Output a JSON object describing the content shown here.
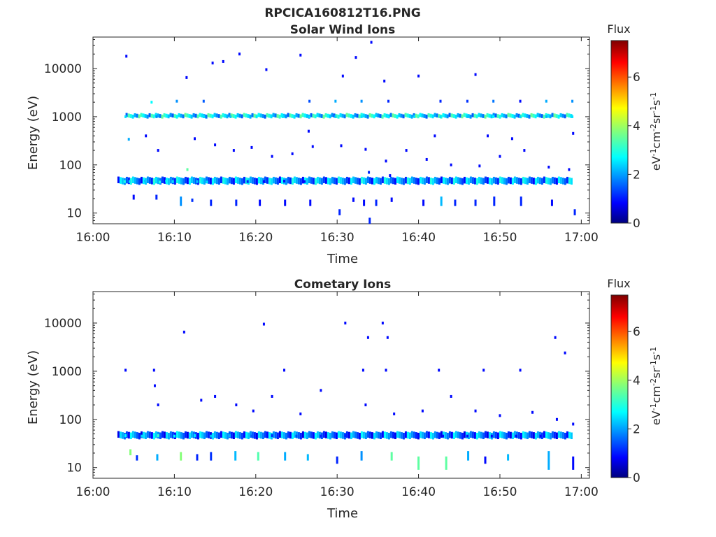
{
  "figure_title": "RPCICA160812T16.PNG",
  "colorbar": {
    "title": "Flux",
    "ticks": [
      0,
      2,
      4,
      6
    ],
    "range": [
      0,
      7.5
    ],
    "colormap": "jet"
  },
  "chart_data": [
    {
      "type": "heatmap",
      "title": "Solar Wind Ions",
      "xlabel": "Time",
      "ylabel": "Energy (eV)",
      "y_scale": "log",
      "xlim": [
        "16:00",
        "17:01"
      ],
      "ylim": [
        6,
        45000
      ],
      "x_ticks": [
        "16:00",
        "16:10",
        "16:20",
        "16:30",
        "16:40",
        "16:50",
        "17:00"
      ],
      "y_ticks": [
        {
          "value": 10,
          "label": "10"
        },
        {
          "value": 100,
          "label": "100"
        },
        {
          "value": 1000,
          "label": "1000"
        },
        {
          "value": 10000,
          "label": "10000"
        }
      ],
      "colorbar_label": "eV-1cm-2sr-1s-1",
      "bands": [
        {
          "name": "band ~45 eV",
          "t_start": "16:03",
          "t_end": "16:59",
          "e_low": 40,
          "e_high": 55,
          "flux": 2.0
        },
        {
          "name": "band ~1000 eV",
          "t_start": "16:04",
          "t_end": "16:59",
          "e_low": 950,
          "e_high": 1150,
          "flux": 2.6
        }
      ],
      "points": [
        {
          "t": "16:03.9",
          "e": 45,
          "f": 3.0
        },
        {
          "t": "16:04.5",
          "e": 45,
          "f": 2.6
        },
        {
          "t": "16:05.2",
          "e": 44,
          "f": 2.2
        },
        {
          "t": "16:06.4",
          "e": 46,
          "f": 2.4
        },
        {
          "t": "16:07.5",
          "e": 47,
          "f": 3.2
        },
        {
          "t": "16:08.2",
          "e": 44,
          "f": 3.0
        },
        {
          "t": "16:09.0",
          "e": 46,
          "f": 2.8
        },
        {
          "t": "16:09.8",
          "e": 45,
          "f": 2.6
        },
        {
          "t": "16:11.6",
          "e": 80,
          "f": 3.5
        },
        {
          "t": "16:12.8",
          "e": 45,
          "f": 2.4
        },
        {
          "t": "16:14.0",
          "e": 44,
          "f": 2.6
        },
        {
          "t": "16:15.5",
          "e": 46,
          "f": 1.6
        },
        {
          "t": "16:17.1",
          "e": 45,
          "f": 1.3
        },
        {
          "t": "16:19.0",
          "e": 45,
          "f": 1.2
        },
        {
          "t": "16:21.0",
          "e": 45,
          "f": 1.0
        },
        {
          "t": "16:23.5",
          "e": 46,
          "f": 1.0
        },
        {
          "t": "16:26.0",
          "e": 45,
          "f": 1.0
        },
        {
          "t": "16:33.9",
          "e": 70,
          "f": 1.2
        },
        {
          "t": "16:36.5",
          "e": 60,
          "f": 1.0
        },
        {
          "t": "16:04.0",
          "e": 1000,
          "f": 2.6
        },
        {
          "t": "16:07.2",
          "e": 2000,
          "f": 2.8
        },
        {
          "t": "16:07.8",
          "e": 1000,
          "f": 2.0
        },
        {
          "t": "16:10.3",
          "e": 1000,
          "f": 2.8
        },
        {
          "t": "16:13.6",
          "e": 1000,
          "f": 2.6
        },
        {
          "t": "16:16.9",
          "e": 1000,
          "f": 2.4
        },
        {
          "t": "16:20.1",
          "e": 1000,
          "f": 2.7
        },
        {
          "t": "16:23.3",
          "e": 1000,
          "f": 2.7
        },
        {
          "t": "16:26.6",
          "e": 1000,
          "f": 2.6
        },
        {
          "t": "16:29.8",
          "e": 1000,
          "f": 2.5
        },
        {
          "t": "16:33.0",
          "e": 1000,
          "f": 2.6
        },
        {
          "t": "16:36.3",
          "e": 1000,
          "f": 2.7
        },
        {
          "t": "16:39.5",
          "e": 1000,
          "f": 2.6
        },
        {
          "t": "16:42.7",
          "e": 1000,
          "f": 2.6
        },
        {
          "t": "16:46.0",
          "e": 1000,
          "f": 2.4
        },
        {
          "t": "16:49.2",
          "e": 1000,
          "f": 2.8
        },
        {
          "t": "16:52.5",
          "e": 1000,
          "f": 2.5
        },
        {
          "t": "16:55.7",
          "e": 1000,
          "f": 2.3
        },
        {
          "t": "16:58.9",
          "e": 1000,
          "f": 2.6
        },
        {
          "t": "16:10.3",
          "e": 2100,
          "f": 2.0
        },
        {
          "t": "16:13.6",
          "e": 2100,
          "f": 1.6
        },
        {
          "t": "16:26.6",
          "e": 2100,
          "f": 1.5
        },
        {
          "t": "16:29.8",
          "e": 2100,
          "f": 2.2
        },
        {
          "t": "16:33.0",
          "e": 2100,
          "f": 2.0
        },
        {
          "t": "16:36.3",
          "e": 2100,
          "f": 1.2
        },
        {
          "t": "16:42.7",
          "e": 2100,
          "f": 1.2
        },
        {
          "t": "16:46.0",
          "e": 2100,
          "f": 1.3
        },
        {
          "t": "16:49.2",
          "e": 2100,
          "f": 1.8
        },
        {
          "t": "16:52.5",
          "e": 2100,
          "f": 1.0
        },
        {
          "t": "16:55.7",
          "e": 2100,
          "f": 2.2
        },
        {
          "t": "16:58.9",
          "e": 2100,
          "f": 2.0
        },
        {
          "t": "16:04.1",
          "e": 18000,
          "f": 1.0
        },
        {
          "t": "16:11.5",
          "e": 6500,
          "f": 1.0
        },
        {
          "t": "16:14.7",
          "e": 13000,
          "f": 1.0
        },
        {
          "t": "16:16.0",
          "e": 14000,
          "f": 1.0
        },
        {
          "t": "16:18.0",
          "e": 20000,
          "f": 1.0
        },
        {
          "t": "16:21.3",
          "e": 9500,
          "f": 1.0
        },
        {
          "t": "16:25.5",
          "e": 19000,
          "f": 1.0
        },
        {
          "t": "16:30.7",
          "e": 7000,
          "f": 1.0
        },
        {
          "t": "16:32.3",
          "e": 17000,
          "f": 1.0
        },
        {
          "t": "16:34.2",
          "e": 35000,
          "f": 1.0
        },
        {
          "t": "16:35.8",
          "e": 5500,
          "f": 1.0
        },
        {
          "t": "16:40.0",
          "e": 7000,
          "f": 1.0
        },
        {
          "t": "16:47.0",
          "e": 7500,
          "f": 1.0
        },
        {
          "t": "16:08.0",
          "e": 200,
          "f": 1.0
        },
        {
          "t": "16:12.5",
          "e": 350,
          "f": 1.0
        },
        {
          "t": "16:15.0",
          "e": 260,
          "f": 1.0
        },
        {
          "t": "16:17.3",
          "e": 200,
          "f": 1.0
        },
        {
          "t": "16:19.5",
          "e": 230,
          "f": 1.0
        },
        {
          "t": "16:22.0",
          "e": 150,
          "f": 1.0
        },
        {
          "t": "16:24.5",
          "e": 170,
          "f": 1.0
        },
        {
          "t": "16:27.0",
          "e": 240,
          "f": 1.0
        },
        {
          "t": "16:30.5",
          "e": 250,
          "f": 1.0
        },
        {
          "t": "16:33.5",
          "e": 210,
          "f": 1.0
        },
        {
          "t": "16:36.0",
          "e": 120,
          "f": 1.0
        },
        {
          "t": "16:38.5",
          "e": 200,
          "f": 1.0
        },
        {
          "t": "16:41.0",
          "e": 130,
          "f": 1.0
        },
        {
          "t": "16:44.0",
          "e": 100,
          "f": 1.0
        },
        {
          "t": "16:47.5",
          "e": 95,
          "f": 1.0
        },
        {
          "t": "16:50.0",
          "e": 150,
          "f": 1.0
        },
        {
          "t": "16:53.0",
          "e": 200,
          "f": 1.0
        },
        {
          "t": "16:56.0",
          "e": 90,
          "f": 1.0
        },
        {
          "t": "16:58.5",
          "e": 80,
          "f": 1.0
        },
        {
          "t": "16:04.4",
          "e": 340,
          "f": 2.2
        },
        {
          "t": "16:06.5",
          "e": 400,
          "f": 1.0
        },
        {
          "t": "16:26.5",
          "e": 500,
          "f": 1.0
        },
        {
          "t": "16:42.0",
          "e": 400,
          "f": 1.0
        },
        {
          "t": "16:48.5",
          "e": 400,
          "f": 1.0
        },
        {
          "t": "16:51.5",
          "e": 350,
          "f": 1.0
        },
        {
          "t": "16:59.0",
          "e": 450,
          "f": 1.0
        }
      ],
      "low_energy_stripes": [
        {
          "t": "16:05.0",
          "e_low": 19,
          "e_high": 24,
          "f": 1.0
        },
        {
          "t": "16:07.8",
          "e_low": 19,
          "e_high": 24,
          "f": 1.2
        },
        {
          "t": "16:10.8",
          "e_low": 14,
          "e_high": 22,
          "f": 2.0
        },
        {
          "t": "16:12.2",
          "e_low": 17,
          "e_high": 20,
          "f": 1.3
        },
        {
          "t": "16:14.5",
          "e_low": 14,
          "e_high": 19,
          "f": 1.2
        },
        {
          "t": "16:17.6",
          "e_low": 14,
          "e_high": 19,
          "f": 1.2
        },
        {
          "t": "16:20.5",
          "e_low": 14,
          "e_high": 19,
          "f": 1.0
        },
        {
          "t": "16:23.6",
          "e_low": 14,
          "e_high": 19,
          "f": 1.0
        },
        {
          "t": "16:26.7",
          "e_low": 14,
          "e_high": 19,
          "f": 1.0
        },
        {
          "t": "16:30.3",
          "e_low": 9,
          "e_high": 12,
          "f": 1.2
        },
        {
          "t": "16:32.0",
          "e_low": 17,
          "e_high": 21,
          "f": 1.0
        },
        {
          "t": "16:33.3",
          "e_low": 14,
          "e_high": 19,
          "f": 1.0
        },
        {
          "t": "16:34.8",
          "e_low": 14,
          "e_high": 19,
          "f": 1.2
        },
        {
          "t": "16:36.7",
          "e_low": 17,
          "e_high": 21,
          "f": 1.0
        },
        {
          "t": "16:40.6",
          "e_low": 14,
          "e_high": 19,
          "f": 1.0
        },
        {
          "t": "16:42.8",
          "e_low": 14,
          "e_high": 22,
          "f": 2.3
        },
        {
          "t": "16:44.5",
          "e_low": 14,
          "e_high": 19,
          "f": 1.2
        },
        {
          "t": "16:47.0",
          "e_low": 14,
          "e_high": 19,
          "f": 1.2
        },
        {
          "t": "16:49.3",
          "e_low": 14,
          "e_high": 22,
          "f": 1.2
        },
        {
          "t": "16:52.6",
          "e_low": 14,
          "e_high": 22,
          "f": 1.2
        },
        {
          "t": "16:56.4",
          "e_low": 14,
          "e_high": 19,
          "f": 1.0
        },
        {
          "t": "16:59.2",
          "e_low": 9,
          "e_high": 12,
          "f": 1.2
        },
        {
          "t": "16:34.0",
          "e_low": 6,
          "e_high": 8,
          "f": 1.2
        }
      ]
    },
    {
      "type": "heatmap",
      "title": "Cometary Ions",
      "xlabel": "Time",
      "ylabel": "Energy (eV)",
      "y_scale": "log",
      "xlim": [
        "16:00",
        "17:01"
      ],
      "ylim": [
        6,
        45000
      ],
      "x_ticks": [
        "16:00",
        "16:10",
        "16:20",
        "16:30",
        "16:40",
        "16:50",
        "17:00"
      ],
      "y_ticks": [
        {
          "value": 10,
          "label": "10"
        },
        {
          "value": 100,
          "label": "100"
        },
        {
          "value": 1000,
          "label": "1000"
        },
        {
          "value": 10000,
          "label": "10000"
        }
      ],
      "colorbar_label": "eV-1cm-2sr-1s-1",
      "bands": [
        {
          "name": "band ~45 eV",
          "t_start": "16:03",
          "t_end": "16:59",
          "e_low": 40,
          "e_high": 55,
          "flux": 1.8
        }
      ],
      "points": [
        {
          "t": "16:04.0",
          "e": 46,
          "f": 2.8
        },
        {
          "t": "16:06.0",
          "e": 45,
          "f": 2.5
        },
        {
          "t": "16:08.0",
          "e": 46,
          "f": 3.2
        },
        {
          "t": "16:10.0",
          "e": 45,
          "f": 2.8
        },
        {
          "t": "16:12.5",
          "e": 46,
          "f": 2.6
        },
        {
          "t": "16:14.5",
          "e": 45,
          "f": 2.4
        },
        {
          "t": "16:16.8",
          "e": 46,
          "f": 2.2
        },
        {
          "t": "16:19.5",
          "e": 45,
          "f": 1.6
        },
        {
          "t": "16:22.0",
          "e": 46,
          "f": 1.3
        },
        {
          "t": "16:25.0",
          "e": 45,
          "f": 1.5
        },
        {
          "t": "16:28.0",
          "e": 45,
          "f": 1.2
        },
        {
          "t": "16:31.0",
          "e": 46,
          "f": 1.2
        },
        {
          "t": "16:34.0",
          "e": 46,
          "f": 1.4
        },
        {
          "t": "16:37.0",
          "e": 45,
          "f": 1.1
        },
        {
          "t": "16:40.0",
          "e": 45,
          "f": 1.0
        },
        {
          "t": "16:43.0",
          "e": 45,
          "f": 1.0
        },
        {
          "t": "16:46.0",
          "e": 45,
          "f": 1.0
        },
        {
          "t": "16:49.0",
          "e": 45,
          "f": 1.0
        },
        {
          "t": "16:52.0",
          "e": 45,
          "f": 1.0
        },
        {
          "t": "16:55.0",
          "e": 45,
          "f": 1.0
        },
        {
          "t": "16:04.0",
          "e": 1050,
          "f": 1.0
        },
        {
          "t": "16:07.5",
          "e": 1050,
          "f": 1.0
        },
        {
          "t": "16:11.2",
          "e": 6500,
          "f": 1.0
        },
        {
          "t": "16:21.0",
          "e": 9500,
          "f": 1.0
        },
        {
          "t": "16:31.0",
          "e": 10000,
          "f": 1.0
        },
        {
          "t": "16:33.8",
          "e": 5000,
          "f": 1.0
        },
        {
          "t": "16:35.6",
          "e": 10000,
          "f": 1.0
        },
        {
          "t": "16:36.2",
          "e": 5000,
          "f": 1.0
        },
        {
          "t": "16:56.8",
          "e": 5000,
          "f": 1.0
        },
        {
          "t": "16:58.0",
          "e": 2400,
          "f": 1.0
        },
        {
          "t": "16:23.5",
          "e": 1050,
          "f": 1.0
        },
        {
          "t": "16:33.2",
          "e": 1050,
          "f": 1.0
        },
        {
          "t": "16:36.0",
          "e": 1050,
          "f": 1.0
        },
        {
          "t": "16:42.5",
          "e": 1050,
          "f": 1.0
        },
        {
          "t": "16:48.0",
          "e": 1050,
          "f": 1.0
        },
        {
          "t": "16:52.5",
          "e": 1050,
          "f": 1.0
        },
        {
          "t": "16:07.6",
          "e": 500,
          "f": 1.0
        },
        {
          "t": "16:08.0",
          "e": 200,
          "f": 1.0
        },
        {
          "t": "16:13.3",
          "e": 250,
          "f": 1.0
        },
        {
          "t": "16:15.0",
          "e": 300,
          "f": 1.0
        },
        {
          "t": "16:17.6",
          "e": 200,
          "f": 1.0
        },
        {
          "t": "16:19.7",
          "e": 150,
          "f": 1.0
        },
        {
          "t": "16:22.0",
          "e": 300,
          "f": 1.0
        },
        {
          "t": "16:25.5",
          "e": 130,
          "f": 1.0
        },
        {
          "t": "16:28.0",
          "e": 400,
          "f": 1.0
        },
        {
          "t": "16:33.5",
          "e": 200,
          "f": 1.0
        },
        {
          "t": "16:37.0",
          "e": 130,
          "f": 1.0
        },
        {
          "t": "16:40.5",
          "e": 150,
          "f": 1.0
        },
        {
          "t": "16:44.0",
          "e": 300,
          "f": 1.0
        },
        {
          "t": "16:47.0",
          "e": 150,
          "f": 1.0
        },
        {
          "t": "16:50.0",
          "e": 120,
          "f": 1.0
        },
        {
          "t": "16:54.0",
          "e": 140,
          "f": 1.0
        },
        {
          "t": "16:57.0",
          "e": 100,
          "f": 1.0
        },
        {
          "t": "16:59.0",
          "e": 80,
          "f": 1.0
        }
      ],
      "low_energy_stripes": [
        {
          "t": "16:04.6",
          "e_low": 18,
          "e_high": 24,
          "f": 3.8
        },
        {
          "t": "16:05.4",
          "e_low": 14,
          "e_high": 18,
          "f": 1.3
        },
        {
          "t": "16:07.9",
          "e_low": 14,
          "e_high": 19,
          "f": 2.2
        },
        {
          "t": "16:10.8",
          "e_low": 14,
          "e_high": 21,
          "f": 3.8
        },
        {
          "t": "16:12.8",
          "e_low": 14,
          "e_high": 19,
          "f": 1.2
        },
        {
          "t": "16:14.5",
          "e_low": 14,
          "e_high": 21,
          "f": 1.3
        },
        {
          "t": "16:17.5",
          "e_low": 14,
          "e_high": 22,
          "f": 2.3
        },
        {
          "t": "16:20.3",
          "e_low": 14,
          "e_high": 21,
          "f": 3.4
        },
        {
          "t": "16:23.6",
          "e_low": 14,
          "e_high": 21,
          "f": 2.2
        },
        {
          "t": "16:26.4",
          "e_low": 14,
          "e_high": 19,
          "f": 2.3
        },
        {
          "t": "16:30.0",
          "e_low": 12,
          "e_high": 17,
          "f": 1.2
        },
        {
          "t": "16:33.0",
          "e_low": 14,
          "e_high": 22,
          "f": 2.0
        },
        {
          "t": "16:36.7",
          "e_low": 14,
          "e_high": 21,
          "f": 3.5
        },
        {
          "t": "16:40.0",
          "e_low": 9,
          "e_high": 17,
          "f": 3.5
        },
        {
          "t": "16:43.4",
          "e_low": 9,
          "e_high": 17,
          "f": 3.5
        },
        {
          "t": "16:46.1",
          "e_low": 14,
          "e_high": 22,
          "f": 2.2
        },
        {
          "t": "16:48.2",
          "e_low": 12,
          "e_high": 17,
          "f": 1.0
        },
        {
          "t": "16:51.0",
          "e_low": 14,
          "e_high": 19,
          "f": 2.3
        },
        {
          "t": "16:56.0",
          "e_low": 9,
          "e_high": 22,
          "f": 2.2
        },
        {
          "t": "16:59.0",
          "e_low": 9,
          "e_high": 17,
          "f": 1.0
        }
      ]
    }
  ]
}
